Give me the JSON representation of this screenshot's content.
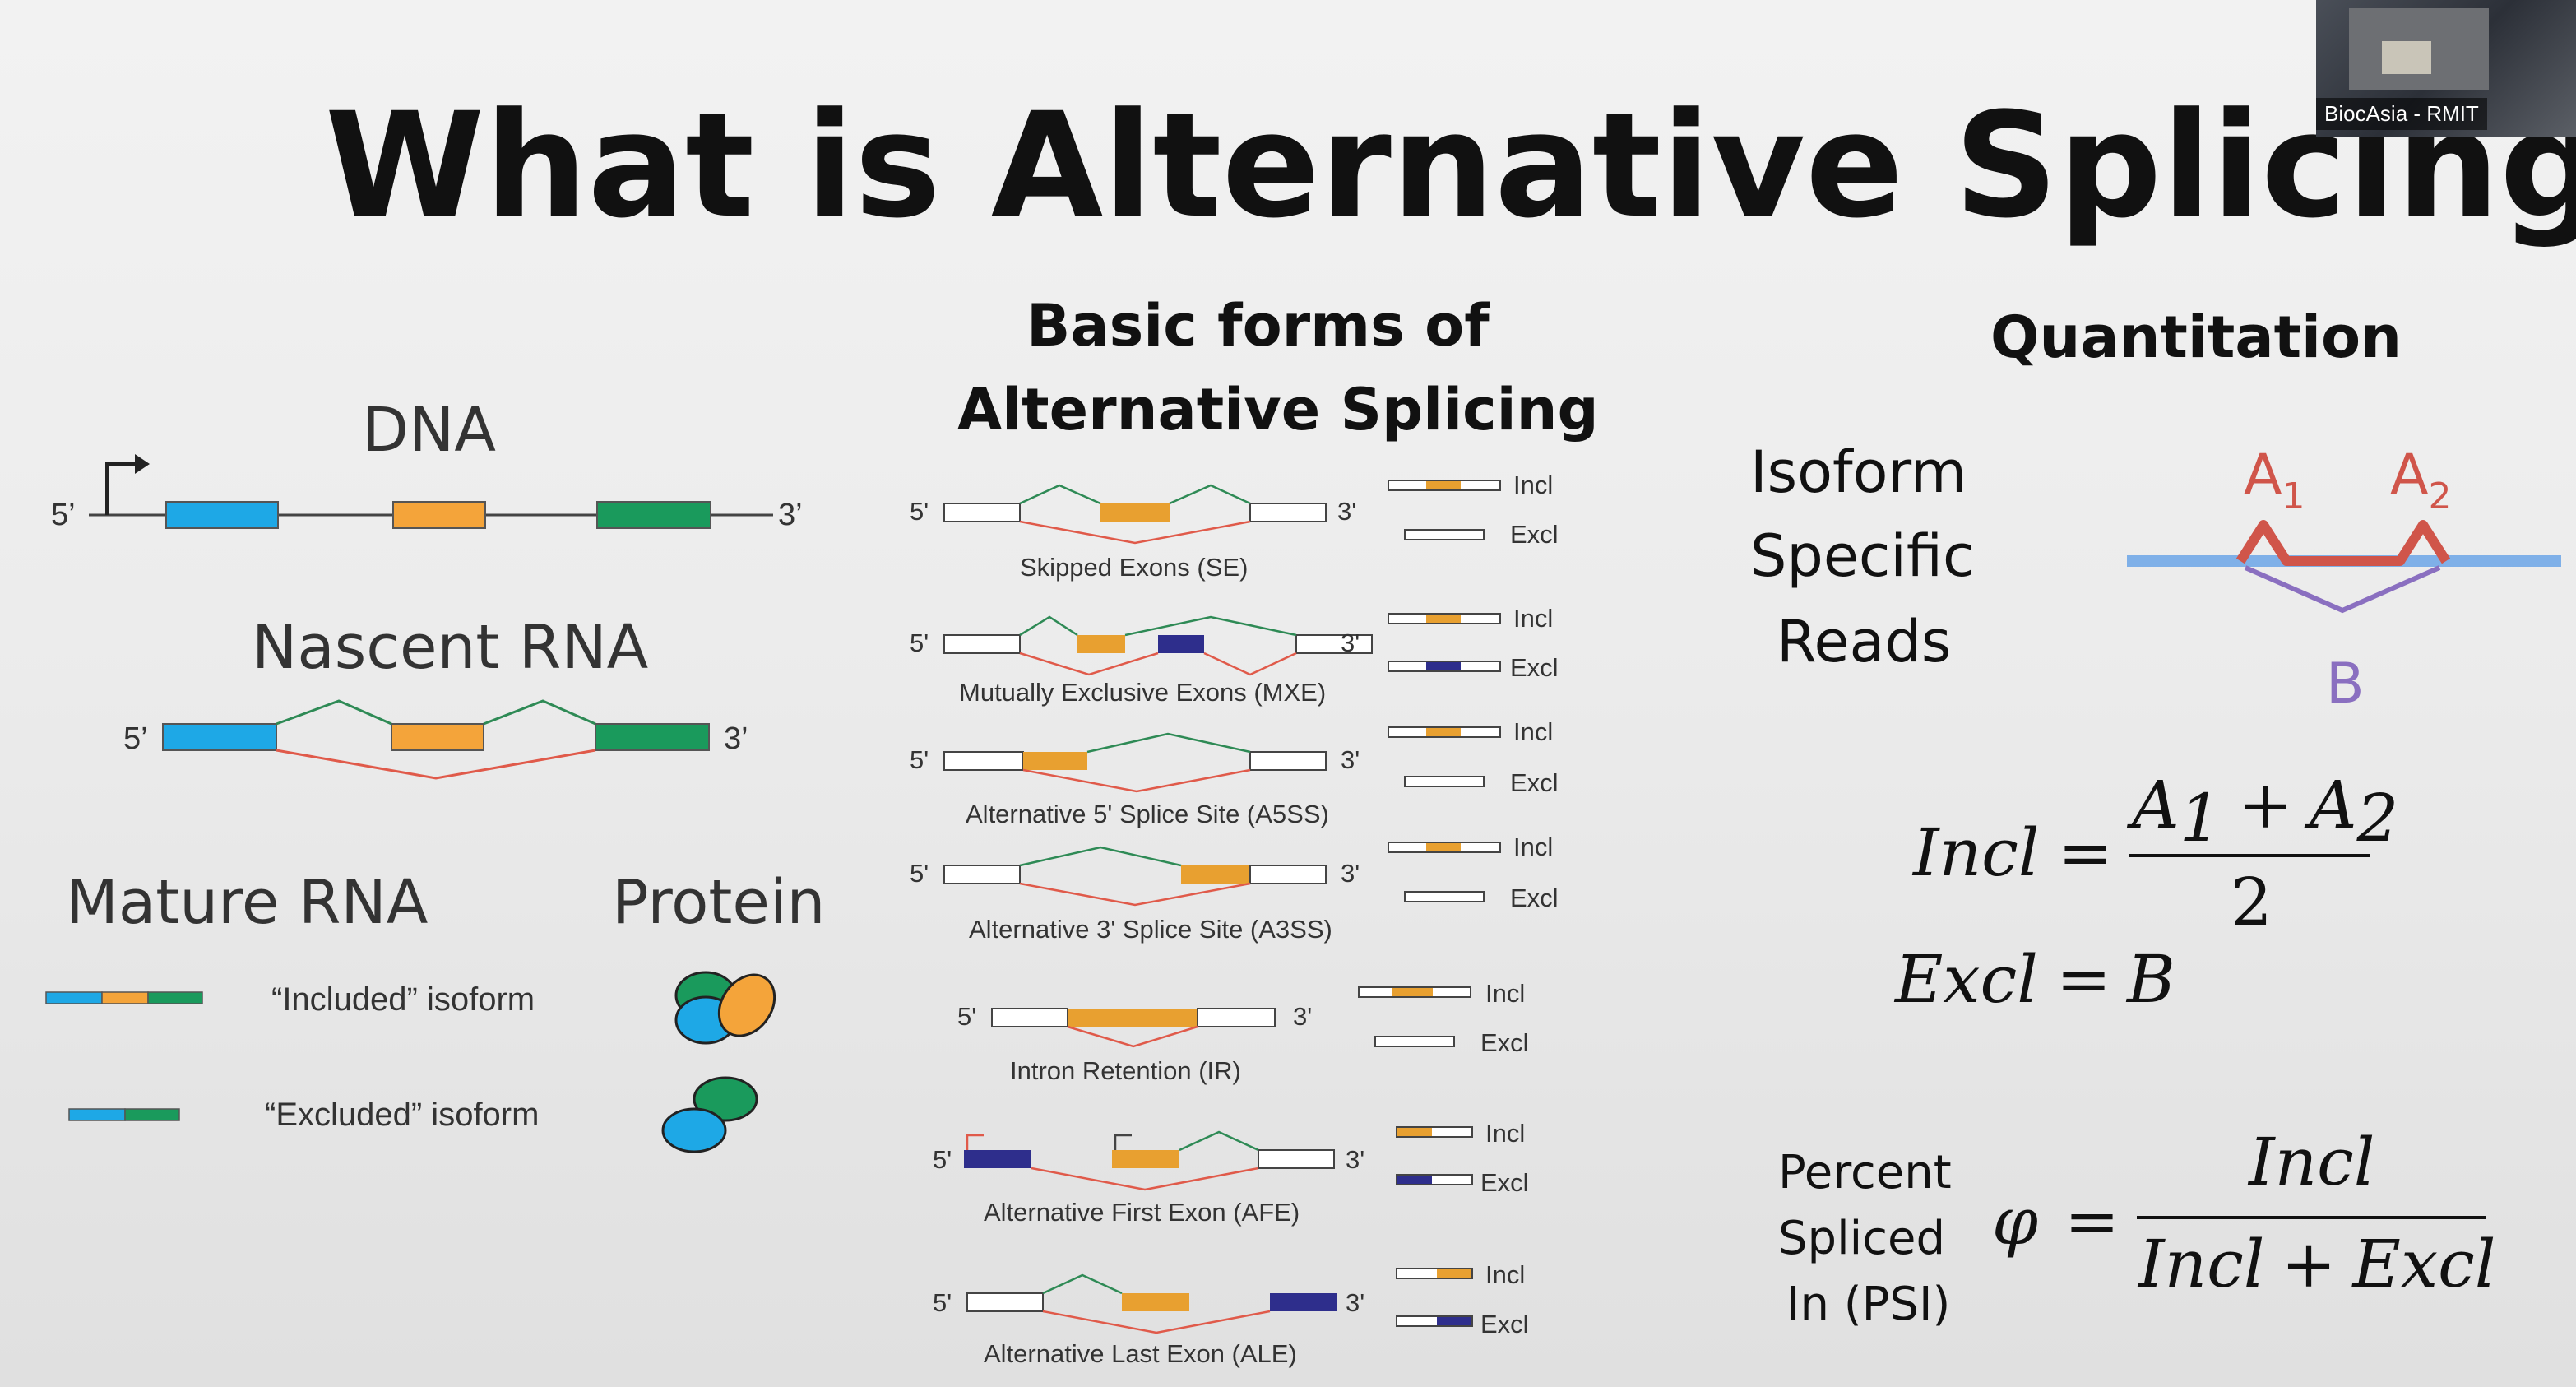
{
  "title": "What is Alternative Splicing",
  "webcam_label": "BiocAsia - RMIT",
  "left": {
    "dna_label": "DNA",
    "nascent_label": "Nascent RNA",
    "mature_label": "Mature RNA",
    "protein_label": "Protein",
    "five_prime": "5’",
    "three_prime": "3’",
    "included_isoform": "“Included” isoform",
    "excluded_isoform": "“Excluded” isoform"
  },
  "middle": {
    "heading_line1": "Basic forms of",
    "heading_line2": "Alternative Splicing",
    "five": "5'",
    "three": "3'",
    "incl": "Incl",
    "excl": "Excl",
    "types": [
      "Skipped Exons (SE)",
      "Mutually Exclusive Exons (MXE)",
      "Alternative 5' Splice Site (A5SS)",
      "Alternative 3' Splice Site (A3SS)",
      "Intron Retention (IR)",
      "Alternative First Exon (AFE)",
      "Alternative Last Exon (ALE)"
    ]
  },
  "right": {
    "heading": "Quantitation",
    "isoform_line1": "Isoform",
    "isoform_line2": "Specific",
    "isoform_line3": "Reads",
    "a": "A",
    "sub1": "1",
    "sub2": "2",
    "b": "B",
    "incl_word": "Incl",
    "excl_word": "Excl",
    "equals": "=",
    "plus": "+",
    "two": "2",
    "psi_line1": "Percent",
    "psi_line2": "Spliced",
    "psi_line3": "In (PSI)",
    "phi": "φ"
  },
  "colors": {
    "blue_exon": "#1ea8e6",
    "orange_exon": "#f4a43a",
    "green_exon": "#1a9a5c",
    "navy_exon": "#2e2e8c",
    "mid_orange": "#e8a030",
    "green_line": "#2e8a55",
    "red_line": "#e05a4a",
    "quant_red": "#d0554a",
    "quant_blue": "#7fb0e8",
    "quant_purple": "#8a6fc0"
  }
}
